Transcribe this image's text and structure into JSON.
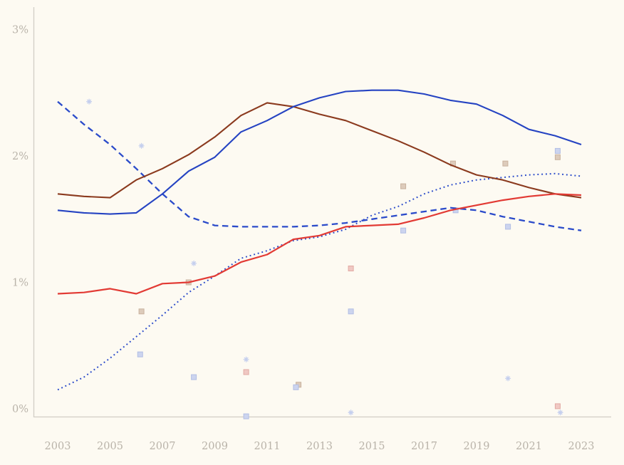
{
  "chart": {
    "background_color": "#fdfaf2",
    "frame_color": "#d2cec5",
    "tick_label_color": "#b9b3a9"
  },
  "chart_data": {
    "type": "line",
    "title": "",
    "xlabel": "",
    "ylabel": "",
    "xlim": [
      2003,
      2023
    ],
    "ylim": [
      0,
      3
    ],
    "grid": false,
    "legend": "none",
    "y_ticks": [
      {
        "label": "3%",
        "value": 3
      },
      {
        "label": "2%",
        "value": 2
      },
      {
        "label": "1%",
        "value": 1
      },
      {
        "label": "0%",
        "value": 0
      }
    ],
    "x_ticks": [
      {
        "label": "2003",
        "value": 2003
      },
      {
        "label": "2005",
        "value": 2005
      },
      {
        "label": "2007",
        "value": 2007
      },
      {
        "label": "2009",
        "value": 2009
      },
      {
        "label": "2011",
        "value": 2011
      },
      {
        "label": "2013",
        "value": 2013
      },
      {
        "label": "2015",
        "value": 2015
      },
      {
        "label": "2017",
        "value": 2017
      },
      {
        "label": "2019",
        "value": 2019
      },
      {
        "label": "2021",
        "value": 2021
      },
      {
        "label": "2023",
        "value": 2023
      }
    ],
    "x": [
      2003,
      2004,
      2005,
      2006,
      2007,
      2008,
      2009,
      2010,
      2011,
      2012,
      2013,
      2014,
      2015,
      2016,
      2017,
      2018,
      2019,
      2020,
      2021,
      2022,
      2023
    ],
    "series": [
      {
        "name": "blue-dotted",
        "style": "dotted",
        "color": "#2b4bca",
        "width": 2,
        "values": [
          0.15,
          0.25,
          0.4,
          0.57,
          0.74,
          0.92,
          1.05,
          1.19,
          1.25,
          1.33,
          1.36,
          1.42,
          1.53,
          1.6,
          1.7,
          1.77,
          1.81,
          1.83,
          1.85,
          1.86,
          1.84
        ]
      },
      {
        "name": "blue-dashed",
        "style": "dashed",
        "color": "#2b4bca",
        "width": 2.3,
        "values": [
          2.43,
          2.25,
          2.09,
          1.9,
          1.7,
          1.52,
          1.45,
          1.44,
          1.44,
          1.44,
          1.45,
          1.47,
          1.5,
          1.53,
          1.56,
          1.59,
          1.57,
          1.52,
          1.48,
          1.44,
          1.41
        ]
      },
      {
        "name": "dark-red-solid",
        "style": "solid",
        "color": "#8b3a1e",
        "width": 2.1,
        "values": [
          1.7,
          1.68,
          1.67,
          1.81,
          1.9,
          2.01,
          2.15,
          2.32,
          2.42,
          2.39,
          2.33,
          2.28,
          2.2,
          2.12,
          2.03,
          1.93,
          1.85,
          1.81,
          1.75,
          1.7,
          1.67
        ]
      },
      {
        "name": "red-solid",
        "style": "solid",
        "color": "#e23a34",
        "width": 2.2,
        "values": [
          0.91,
          0.92,
          0.95,
          0.91,
          0.99,
          1.0,
          1.05,
          1.16,
          1.22,
          1.34,
          1.37,
          1.44,
          1.45,
          1.46,
          1.51,
          1.57,
          1.61,
          1.65,
          1.68,
          1.7,
          1.69
        ]
      },
      {
        "name": "blue-solid",
        "style": "solid",
        "color": "#2543c2",
        "width": 2.1,
        "values": [
          1.57,
          1.55,
          1.54,
          1.55,
          1.7,
          1.88,
          1.99,
          2.19,
          2.28,
          2.39,
          2.46,
          2.51,
          2.52,
          2.52,
          2.49,
          2.44,
          2.41,
          2.32,
          2.21,
          2.16,
          2.09
        ]
      }
    ],
    "marker_colors": {
      "blue": {
        "fill": "#ccd4ef",
        "stroke": "#b2bee4"
      },
      "tan": {
        "fill": "#ddcbbb",
        "stroke": "#c9b29e"
      },
      "pink": {
        "fill": "#f0c8c3",
        "stroke": "#e2a9a3"
      },
      "star": "#c5cfee"
    },
    "markers": [
      {
        "shape": "star",
        "color": "blue",
        "year": 2004.2,
        "value": 2.43
      },
      {
        "shape": "star",
        "color": "blue",
        "year": 2006.2,
        "value": 2.08
      },
      {
        "shape": "square",
        "color": "tan",
        "year": 2006.2,
        "value": 0.77
      },
      {
        "shape": "square",
        "color": "blue",
        "year": 2006.15,
        "value": 0.43
      },
      {
        "shape": "square",
        "color": "tan",
        "year": 2008.0,
        "value": 1.0
      },
      {
        "shape": "star",
        "color": "blue",
        "year": 2008.2,
        "value": 1.15
      },
      {
        "shape": "square",
        "color": "blue",
        "year": 2008.2,
        "value": 0.25
      },
      {
        "shape": "star",
        "color": "blue",
        "year": 2010.2,
        "value": 0.39
      },
      {
        "shape": "square",
        "color": "pink",
        "year": 2010.2,
        "value": 0.29
      },
      {
        "shape": "square",
        "color": "blue",
        "year": 2010.2,
        "value": -0.06
      },
      {
        "shape": "square",
        "color": "tan",
        "year": 2012.2,
        "value": 0.19
      },
      {
        "shape": "square",
        "color": "blue",
        "year": 2012.1,
        "value": 0.17
      },
      {
        "shape": "square",
        "color": "pink",
        "year": 2014.2,
        "value": 1.11
      },
      {
        "shape": "square",
        "color": "blue",
        "year": 2014.2,
        "value": 0.77
      },
      {
        "shape": "star",
        "color": "blue",
        "year": 2014.2,
        "value": -0.03
      },
      {
        "shape": "square",
        "color": "tan",
        "year": 2016.2,
        "value": 1.76
      },
      {
        "shape": "square",
        "color": "blue",
        "year": 2016.2,
        "value": 1.41
      },
      {
        "shape": "square",
        "color": "tan",
        "year": 2018.1,
        "value": 1.94
      },
      {
        "shape": "square",
        "color": "blue",
        "year": 2018.2,
        "value": 1.57
      },
      {
        "shape": "square",
        "color": "tan",
        "year": 2020.1,
        "value": 1.94
      },
      {
        "shape": "square",
        "color": "blue",
        "year": 2020.2,
        "value": 1.44
      },
      {
        "shape": "star",
        "color": "blue",
        "year": 2020.2,
        "value": 0.24
      },
      {
        "shape": "square",
        "color": "blue",
        "year": 2022.1,
        "value": 2.04
      },
      {
        "shape": "square",
        "color": "tan",
        "year": 2022.1,
        "value": 1.99
      },
      {
        "shape": "square",
        "color": "pink",
        "year": 2022.1,
        "value": 0.02
      },
      {
        "shape": "star",
        "color": "blue",
        "year": 2022.2,
        "value": -0.03
      }
    ]
  }
}
